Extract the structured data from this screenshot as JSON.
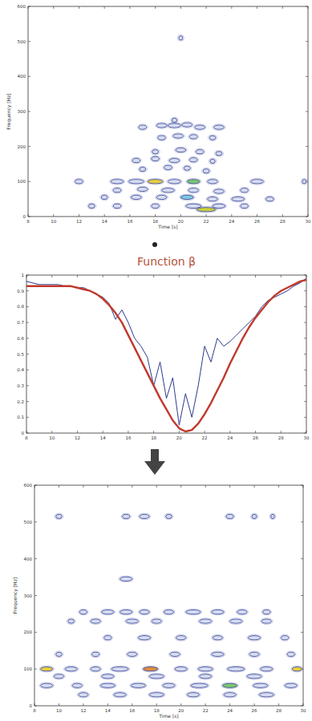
{
  "chart_data": [
    {
      "type": "scatter",
      "xlabel": "Time [s]",
      "ylabel": "Frequency [Hz]",
      "marker": "ellipse",
      "xlim": [
        8,
        30
      ],
      "xticks": [
        8,
        10,
        12,
        14,
        16,
        18,
        20,
        22,
        24,
        26,
        28,
        30
      ],
      "ylim": [
        0,
        600
      ],
      "yticks": [
        0,
        100,
        200,
        300,
        400,
        500,
        600
      ],
      "x": [
        20,
        17,
        18.5,
        19.5,
        20.5,
        21.5,
        23,
        19.5,
        18.5,
        19.8,
        21,
        22.5,
        18,
        20,
        21.5,
        23,
        16.5,
        18,
        19.5,
        21,
        22.5,
        17,
        19,
        20.5,
        22,
        12,
        15,
        16.5,
        18,
        19.5,
        21,
        22.5,
        26,
        29.7,
        15,
        17,
        19,
        21,
        23,
        25,
        14,
        16.5,
        18.5,
        20.5,
        22.5,
        24.5,
        27,
        13,
        15,
        18,
        21,
        23,
        25,
        22
      ],
      "values": [
        510,
        255,
        260,
        260,
        262,
        255,
        255,
        275,
        225,
        230,
        228,
        225,
        185,
        190,
        185,
        180,
        160,
        165,
        160,
        162,
        158,
        135,
        140,
        138,
        130,
        100,
        100,
        100,
        100,
        100,
        100,
        100,
        100,
        100,
        75,
        78,
        75,
        75,
        72,
        75,
        55,
        55,
        55,
        55,
        50,
        50,
        50,
        30,
        30,
        30,
        30,
        30,
        30,
        20
      ],
      "durations": [
        0.3,
        0.6,
        0.8,
        1.0,
        0.8,
        0.8,
        0.8,
        0.4,
        0.6,
        0.8,
        0.6,
        0.5,
        0.5,
        0.8,
        0.6,
        0.5,
        0.6,
        0.6,
        0.8,
        0.6,
        0.4,
        0.5,
        0.6,
        0.5,
        0.5,
        0.6,
        1.0,
        1.2,
        1.2,
        1.0,
        1.0,
        0.8,
        1.0,
        0.3,
        0.6,
        0.8,
        1.0,
        0.8,
        0.8,
        0.6,
        0.5,
        0.8,
        0.8,
        1.0,
        0.8,
        1.0,
        0.6,
        0.5,
        0.6,
        0.6,
        1.2,
        1.0,
        0.6,
        1.5
      ],
      "colors": [
        "#d6ddf2",
        "#d6ddf2",
        "#d6ddf2",
        "#d6ddf2",
        "#d6ddf2",
        "#d6ddf2",
        "#d6ddf2",
        "#d6ddf2",
        "#d6ddf2",
        "#d6ddf2",
        "#d6ddf2",
        "#d6ddf2",
        "#d6ddf2",
        "#d6ddf2",
        "#d6ddf2",
        "#d6ddf2",
        "#d6ddf2",
        "#d6ddf2",
        "#d6ddf2",
        "#d6ddf2",
        "#d6ddf2",
        "#d6ddf2",
        "#d6ddf2",
        "#d6ddf2",
        "#d6ddf2",
        "#d6ddf2",
        "#d6ddf2",
        "#d6ddf2",
        "#e8d040",
        "#d6ddf2",
        "#7cc870",
        "#d6ddf2",
        "#d6ddf2",
        "#d6ddf2",
        "#d6ddf2",
        "#d6ddf2",
        "#d6ddf2",
        "#d6ddf2",
        "#d6ddf2",
        "#d6ddf2",
        "#d6ddf2",
        "#d6ddf2",
        "#d6ddf2",
        "#7cc8e0",
        "#d6ddf2",
        "#d6ddf2",
        "#d6ddf2",
        "#d6ddf2",
        "#d6ddf2",
        "#d6ddf2",
        "#d6ddf2",
        "#d6ddf2",
        "#d6ddf2",
        "#c8d040"
      ]
    },
    {
      "type": "line",
      "title": "Function β",
      "xlim": [
        8,
        30
      ],
      "xticks": [
        8,
        10,
        12,
        14,
        16,
        18,
        20,
        22,
        24,
        26,
        28,
        30
      ],
      "ylim": [
        0,
        1
      ],
      "yticks": [
        0,
        0.1,
        0.2,
        0.3,
        0.4,
        0.5,
        0.6,
        0.7,
        0.8,
        0.9,
        1
      ],
      "x": [
        8,
        8.5,
        9,
        9.5,
        10,
        10.5,
        11,
        11.5,
        12,
        12.5,
        13,
        13.5,
        14,
        14.5,
        15,
        15.5,
        16,
        16.5,
        17,
        17.5,
        18,
        18.5,
        19,
        19.5,
        20,
        20.5,
        21,
        21.5,
        22,
        22.5,
        23,
        23.5,
        24,
        24.5,
        25,
        25.5,
        26,
        26.5,
        27,
        27.5,
        28,
        28.5,
        29,
        29.5,
        30
      ],
      "series": [
        {
          "color": "#2b3a8c",
          "values": [
            0.96,
            0.95,
            0.94,
            0.94,
            0.94,
            0.94,
            0.93,
            0.93,
            0.92,
            0.92,
            0.9,
            0.88,
            0.86,
            0.82,
            0.72,
            0.78,
            0.7,
            0.6,
            0.55,
            0.48,
            0.3,
            0.45,
            0.22,
            0.35,
            0.05,
            0.25,
            0.1,
            0.3,
            0.55,
            0.45,
            0.6,
            0.55,
            0.58,
            0.62,
            0.66,
            0.7,
            0.74,
            0.8,
            0.84,
            0.86,
            0.88,
            0.9,
            0.93,
            0.95,
            0.98
          ]
        },
        {
          "color": "#c0392b",
          "values": [
            0.93,
            0.93,
            0.93,
            0.93,
            0.93,
            0.93,
            0.93,
            0.93,
            0.92,
            0.91,
            0.9,
            0.88,
            0.85,
            0.81,
            0.76,
            0.7,
            0.62,
            0.54,
            0.46,
            0.38,
            0.3,
            0.22,
            0.15,
            0.08,
            0.03,
            0.01,
            0.02,
            0.06,
            0.12,
            0.19,
            0.27,
            0.35,
            0.44,
            0.52,
            0.6,
            0.67,
            0.73,
            0.78,
            0.83,
            0.87,
            0.9,
            0.92,
            0.94,
            0.96,
            0.97
          ]
        }
      ]
    },
    {
      "type": "scatter",
      "xlabel": "Time [s]",
      "ylabel": "Frequency [Hz]",
      "marker": "ellipse",
      "xlim": [
        8,
        30
      ],
      "xticks": [
        8,
        10,
        12,
        14,
        16,
        18,
        20,
        22,
        24,
        26,
        28,
        30
      ],
      "ylim": [
        0,
        600
      ],
      "yticks": [
        0,
        100,
        200,
        300,
        400,
        500,
        600
      ],
      "x": [
        10,
        15.5,
        17,
        19,
        24,
        26,
        27.5,
        15.5,
        12,
        14,
        15.5,
        17,
        19,
        21,
        23,
        25,
        27,
        11,
        13,
        16,
        18,
        22,
        24.5,
        27,
        14,
        17,
        20,
        23,
        26,
        28.5,
        10,
        13,
        16,
        19.5,
        23,
        26,
        29,
        9,
        11,
        13,
        15,
        17.5,
        20,
        22,
        24.5,
        27,
        29.5,
        10,
        14,
        18,
        22,
        26,
        9,
        11.5,
        14,
        16.5,
        19,
        21.5,
        24,
        26.5,
        29,
        12,
        15,
        18,
        21,
        24,
        27
      ],
      "values": [
        515,
        515,
        515,
        515,
        515,
        515,
        515,
        345,
        255,
        255,
        255,
        255,
        255,
        255,
        255,
        255,
        255,
        230,
        230,
        230,
        230,
        230,
        230,
        230,
        185,
        185,
        185,
        185,
        185,
        185,
        140,
        140,
        140,
        140,
        140,
        140,
        140,
        100,
        100,
        100,
        100,
        100,
        100,
        100,
        100,
        100,
        100,
        80,
        80,
        80,
        80,
        80,
        55,
        55,
        55,
        55,
        55,
        55,
        55,
        55,
        55,
        30,
        30,
        30,
        30,
        30,
        30
      ],
      "durations": [
        0.5,
        0.6,
        0.8,
        0.5,
        0.6,
        0.4,
        0.3,
        1.0,
        0.6,
        1.0,
        1.0,
        0.8,
        0.8,
        1.2,
        1.0,
        0.8,
        0.6,
        0.5,
        0.8,
        1.0,
        0.8,
        1.0,
        1.0,
        0.8,
        0.6,
        1.0,
        0.8,
        0.8,
        1.0,
        0.6,
        0.5,
        0.6,
        0.8,
        0.8,
        1.0,
        0.8,
        0.6,
        1.0,
        1.0,
        0.8,
        1.4,
        1.2,
        1.0,
        1.2,
        1.4,
        1.0,
        0.8,
        0.8,
        1.0,
        1.2,
        1.0,
        1.2,
        1.0,
        0.8,
        1.2,
        1.2,
        1.0,
        1.4,
        1.2,
        1.2,
        1.0,
        0.8,
        1.0,
        1.2,
        1.0,
        1.0,
        1.2
      ],
      "colors": [
        "#d6ddf2",
        "#d6ddf2",
        "#d6ddf2",
        "#d6ddf2",
        "#d6ddf2",
        "#d6ddf2",
        "#d6ddf2",
        "#d6ddf2",
        "#d6ddf2",
        "#d6ddf2",
        "#d6ddf2",
        "#d6ddf2",
        "#d6ddf2",
        "#d6ddf2",
        "#d6ddf2",
        "#d6ddf2",
        "#d6ddf2",
        "#d6ddf2",
        "#d6ddf2",
        "#d6ddf2",
        "#d6ddf2",
        "#d6ddf2",
        "#d6ddf2",
        "#d6ddf2",
        "#d6ddf2",
        "#d6ddf2",
        "#d6ddf2",
        "#d6ddf2",
        "#d6ddf2",
        "#d6ddf2",
        "#d6ddf2",
        "#d6ddf2",
        "#d6ddf2",
        "#d6ddf2",
        "#d6ddf2",
        "#d6ddf2",
        "#d6ddf2",
        "#e8d040",
        "#d6ddf2",
        "#d6ddf2",
        "#d6ddf2",
        "#e09040",
        "#d6ddf2",
        "#d6ddf2",
        "#d6ddf2",
        "#d6ddf2",
        "#e8d040",
        "#d6ddf2",
        "#d6ddf2",
        "#d6ddf2",
        "#d6ddf2",
        "#d6ddf2",
        "#d6ddf2",
        "#d6ddf2",
        "#d6ddf2",
        "#d6ddf2",
        "#d6ddf2",
        "#d6ddf2",
        "#7cc870",
        "#d6ddf2",
        "#d6ddf2",
        "#d6ddf2",
        "#d6ddf2",
        "#d6ddf2",
        "#d6ddf2",
        "#d6ddf2",
        "#d6ddf2"
      ]
    }
  ]
}
